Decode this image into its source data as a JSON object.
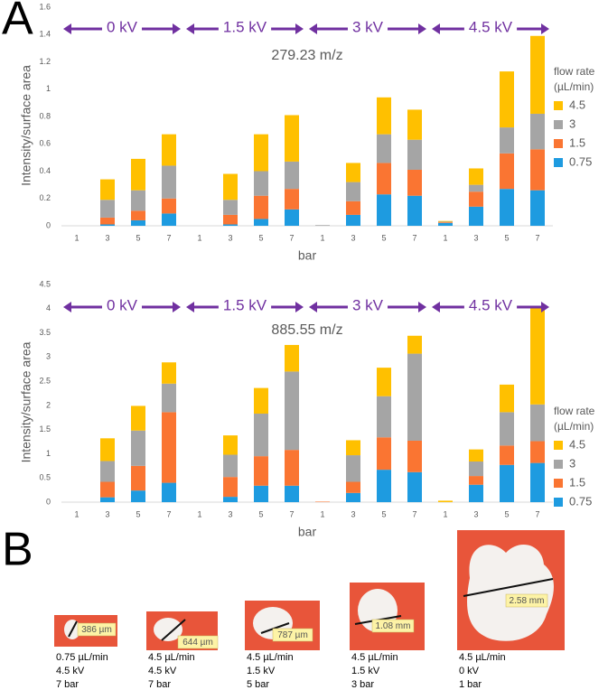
{
  "panel_labels": {
    "a": "A",
    "b": "B"
  },
  "chart_data": [
    {
      "type": "bar",
      "stacked": true,
      "title": "279.23 m/z",
      "xlabel": "bar",
      "ylabel": "Intensity/surface area",
      "groups": [
        "0 kV",
        "1.5 kV",
        "3 kV",
        "4.5 kV"
      ],
      "group_color": "#7030a0",
      "categories": [
        "1",
        "3",
        "5",
        "7",
        "1",
        "3",
        "5",
        "7",
        "1",
        "3",
        "5",
        "7",
        "1",
        "3",
        "5",
        "7"
      ],
      "legend_title": [
        "flow rate",
        "(µL/min)"
      ],
      "series": [
        {
          "name": "0.75",
          "color": "#1e9be0",
          "values": [
            0,
            0.01,
            0.04,
            0.09,
            0,
            0.01,
            0.05,
            0.12,
            0,
            0.08,
            0.23,
            0.22,
            0.02,
            0.14,
            0.27,
            0.26
          ]
        },
        {
          "name": "1.5",
          "color": "#fa7532",
          "values": [
            0,
            0.05,
            0.07,
            0.11,
            0,
            0.07,
            0.17,
            0.15,
            0,
            0.1,
            0.23,
            0.19,
            0.005,
            0.11,
            0.26,
            0.3
          ]
        },
        {
          "name": "3",
          "color": "#a5a5a5",
          "values": [
            0,
            0.13,
            0.15,
            0.24,
            0,
            0.11,
            0.18,
            0.2,
            0.005,
            0.14,
            0.21,
            0.22,
            0.005,
            0.05,
            0.19,
            0.26
          ]
        },
        {
          "name": "4.5",
          "color": "#ffc000",
          "values": [
            0,
            0.15,
            0.23,
            0.23,
            0,
            0.19,
            0.27,
            0.34,
            0,
            0.14,
            0.27,
            0.22,
            0.005,
            0.12,
            0.41,
            0.57
          ]
        }
      ],
      "ylim": [
        0,
        1.6
      ],
      "yticks": [
        0,
        0.2,
        0.4,
        0.6,
        0.8,
        1,
        1.2,
        1.4,
        1.6
      ]
    },
    {
      "type": "bar",
      "stacked": true,
      "title": "885.55 m/z",
      "xlabel": "bar",
      "ylabel": "Intensity/surface area",
      "groups": [
        "0 kV",
        "1.5 kV",
        "3 kV",
        "4.5 kV"
      ],
      "group_color": "#7030a0",
      "categories": [
        "1",
        "3",
        "5",
        "7",
        "1",
        "3",
        "5",
        "7",
        "1",
        "3",
        "5",
        "7",
        "1",
        "3",
        "5",
        "7"
      ],
      "legend_title": [
        "flow rate",
        "(µL/min)"
      ],
      "series": [
        {
          "name": "0.75",
          "color": "#1e9be0",
          "values": [
            0,
            0.1,
            0.24,
            0.4,
            0,
            0.11,
            0.34,
            0.34,
            0,
            0.19,
            0.67,
            0.62,
            0,
            0.36,
            0.77,
            0.81
          ]
        },
        {
          "name": "1.5",
          "color": "#fa7532",
          "values": [
            0,
            0.32,
            0.51,
            1.46,
            0,
            0.41,
            0.61,
            0.74,
            0.01,
            0.23,
            0.67,
            0.65,
            0,
            0.18,
            0.4,
            0.45
          ]
        },
        {
          "name": "3",
          "color": "#a5a5a5",
          "values": [
            0,
            0.43,
            0.73,
            0.59,
            0,
            0.46,
            0.88,
            1.62,
            0,
            0.55,
            0.85,
            1.8,
            0,
            0.3,
            0.69,
            0.76
          ]
        },
        {
          "name": "4.5",
          "color": "#ffc000",
          "values": [
            0,
            0.47,
            0.51,
            0.44,
            0,
            0.4,
            0.53,
            0.55,
            0,
            0.31,
            0.59,
            0.37,
            0.03,
            0.25,
            0.57,
            2.01
          ]
        }
      ],
      "ylim": [
        0,
        4.5
      ],
      "yticks": [
        0,
        0.5,
        1,
        1.5,
        2,
        2.5,
        3,
        3.5,
        4,
        4.5
      ]
    }
  ],
  "panel_b": [
    {
      "measurement": "386 µm",
      "caption": [
        "0.75 µL/min",
        "4.5 kV",
        "7 bar"
      ]
    },
    {
      "measurement": "644 µm",
      "caption": [
        "4.5 µL/min",
        "4.5 kV",
        "7 bar"
      ]
    },
    {
      "measurement": "787 µm",
      "caption": [
        "4.5 µL/min",
        "1.5 kV",
        "5 bar"
      ]
    },
    {
      "measurement": "1.08 mm",
      "caption": [
        "4.5 µL/min",
        "1.5 kV",
        "3 bar"
      ]
    },
    {
      "measurement": "2.58 mm",
      "caption": [
        "4.5 µL/min",
        "0 kV",
        "1 bar"
      ]
    }
  ]
}
